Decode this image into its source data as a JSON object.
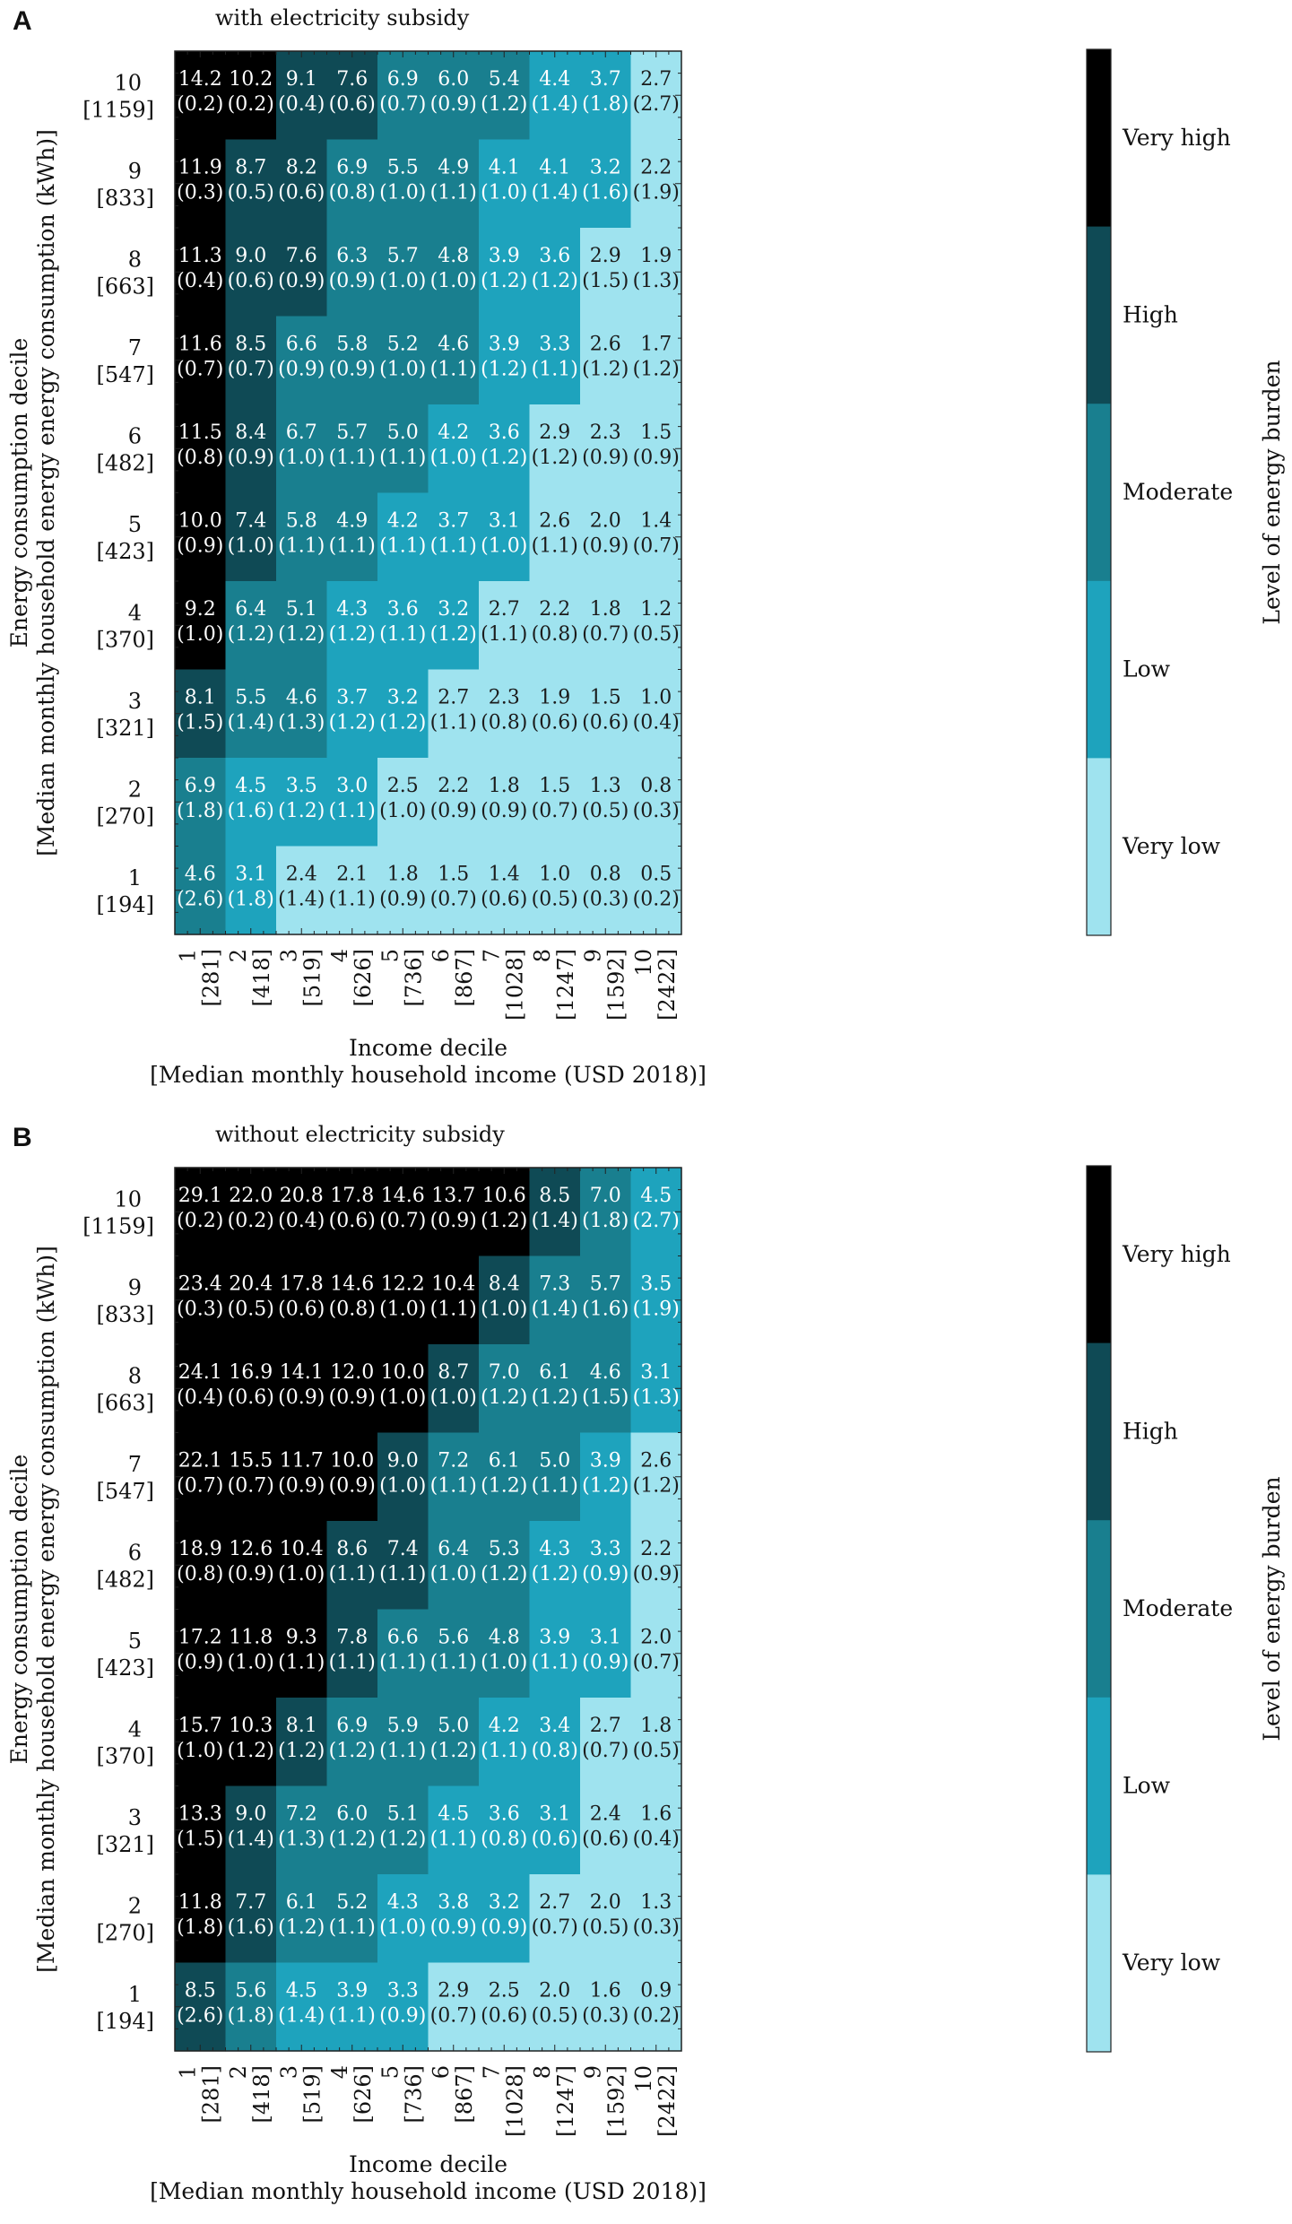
{
  "colors": {
    "very_low": "#9fe3ef",
    "low": "#1ea3bd",
    "moderate": "#197f8f",
    "high": "#0f4a55",
    "very_high": "#000000"
  },
  "chart_data": [
    {
      "type": "heatmap",
      "panel_label": "A",
      "title": "with electricity subsidy",
      "xlabel": "Income decile",
      "xlabel2": "[Median monthly household income (USD 2018)]",
      "ylabel": "Energy consumption decile",
      "ylabel2": "[Median monthly household energy energy consumption (kWh)]",
      "x_ticks": [
        {
          "decile": "1",
          "median": "[281]"
        },
        {
          "decile": "2",
          "median": "[418]"
        },
        {
          "decile": "3",
          "median": "[519]"
        },
        {
          "decile": "4",
          "median": "[626]"
        },
        {
          "decile": "5",
          "median": "[736]"
        },
        {
          "decile": "6",
          "median": "[867]"
        },
        {
          "decile": "7",
          "median": "[1028]"
        },
        {
          "decile": "8",
          "median": "[1247]"
        },
        {
          "decile": "9",
          "median": "[1592]"
        },
        {
          "decile": "10",
          "median": "[2422]"
        }
      ],
      "y_ticks": [
        {
          "decile": "10",
          "median": "[1159]"
        },
        {
          "decile": "9",
          "median": "[833]"
        },
        {
          "decile": "8",
          "median": "[663]"
        },
        {
          "decile": "7",
          "median": "[547]"
        },
        {
          "decile": "6",
          "median": "[482]"
        },
        {
          "decile": "5",
          "median": "[423]"
        },
        {
          "decile": "4",
          "median": "[370]"
        },
        {
          "decile": "3",
          "median": "[321]"
        },
        {
          "decile": "2",
          "median": "[270]"
        },
        {
          "decile": "1",
          "median": "[194]"
        }
      ],
      "values": [
        [
          "14.2",
          "10.2",
          "9.1",
          "7.6",
          "6.9",
          "6.0",
          "5.4",
          "4.4",
          "3.7",
          "2.7"
        ],
        [
          "11.9",
          "8.7",
          "8.2",
          "6.9",
          "5.5",
          "4.9",
          "4.1",
          "4.1",
          "3.2",
          "2.2"
        ],
        [
          "11.3",
          "9.0",
          "7.6",
          "6.3",
          "5.7",
          "4.8",
          "3.9",
          "3.6",
          "2.9",
          "1.9"
        ],
        [
          "11.6",
          "8.5",
          "6.6",
          "5.8",
          "5.2",
          "4.6",
          "3.9",
          "3.3",
          "2.6",
          "1.7"
        ],
        [
          "11.5",
          "8.4",
          "6.7",
          "5.7",
          "5.0",
          "4.2",
          "3.6",
          "2.9",
          "2.3",
          "1.5"
        ],
        [
          "10.0",
          "7.4",
          "5.8",
          "4.9",
          "4.2",
          "3.7",
          "3.1",
          "2.6",
          "2.0",
          "1.4"
        ],
        [
          "9.2",
          "6.4",
          "5.1",
          "4.3",
          "3.6",
          "3.2",
          "2.7",
          "2.2",
          "1.8",
          "1.2"
        ],
        [
          "8.1",
          "5.5",
          "4.6",
          "3.7",
          "3.2",
          "2.7",
          "2.3",
          "1.9",
          "1.5",
          "1.0"
        ],
        [
          "6.9",
          "4.5",
          "3.5",
          "3.0",
          "2.5",
          "2.2",
          "1.8",
          "1.5",
          "1.3",
          "0.8"
        ],
        [
          "4.6",
          "3.1",
          "2.4",
          "2.1",
          "1.8",
          "1.5",
          "1.4",
          "1.0",
          "0.8",
          "0.5"
        ]
      ],
      "errors": [
        [
          "(0.2)",
          "(0.2)",
          "(0.4)",
          "(0.6)",
          "(0.7)",
          "(0.9)",
          "(1.2)",
          "(1.4)",
          "(1.8)",
          "(2.7)"
        ],
        [
          "(0.3)",
          "(0.5)",
          "(0.6)",
          "(0.8)",
          "(1.0)",
          "(1.1)",
          "(1.0)",
          "(1.4)",
          "(1.6)",
          "(1.9)"
        ],
        [
          "(0.4)",
          "(0.6)",
          "(0.9)",
          "(0.9)",
          "(1.0)",
          "(1.0)",
          "(1.2)",
          "(1.2)",
          "(1.5)",
          "(1.3)"
        ],
        [
          "(0.7)",
          "(0.7)",
          "(0.9)",
          "(0.9)",
          "(1.0)",
          "(1.1)",
          "(1.2)",
          "(1.1)",
          "(1.2)",
          "(1.2)"
        ],
        [
          "(0.8)",
          "(0.9)",
          "(1.0)",
          "(1.1)",
          "(1.1)",
          "(1.0)",
          "(1.2)",
          "(1.2)",
          "(0.9)",
          "(0.9)"
        ],
        [
          "(0.9)",
          "(1.0)",
          "(1.1)",
          "(1.1)",
          "(1.1)",
          "(1.1)",
          "(1.0)",
          "(1.1)",
          "(0.9)",
          "(0.7)"
        ],
        [
          "(1.0)",
          "(1.2)",
          "(1.2)",
          "(1.2)",
          "(1.1)",
          "(1.2)",
          "(1.1)",
          "(0.8)",
          "(0.7)",
          "(0.5)"
        ],
        [
          "(1.5)",
          "(1.4)",
          "(1.3)",
          "(1.2)",
          "(1.2)",
          "(1.1)",
          "(0.8)",
          "(0.6)",
          "(0.6)",
          "(0.4)"
        ],
        [
          "(1.8)",
          "(1.6)",
          "(1.2)",
          "(1.1)",
          "(1.0)",
          "(0.9)",
          "(0.9)",
          "(0.7)",
          "(0.5)",
          "(0.3)"
        ],
        [
          "(2.6)",
          "(1.8)",
          "(1.4)",
          "(1.1)",
          "(0.9)",
          "(0.7)",
          "(0.6)",
          "(0.5)",
          "(0.3)",
          "(0.2)"
        ]
      ],
      "colorbar": {
        "label": "Level of energy burden",
        "categories": [
          "Very high",
          "High",
          "Moderate",
          "Low",
          "Very low"
        ]
      }
    },
    {
      "type": "heatmap",
      "panel_label": "B",
      "title": "without electricity subsidy",
      "xlabel": "Income decile",
      "xlabel2": "[Median monthly household income (USD 2018)]",
      "ylabel": "Energy consumption decile",
      "ylabel2": "[Median monthly household energy energy consumption (kWh)]",
      "x_ticks": [
        {
          "decile": "1",
          "median": "[281]"
        },
        {
          "decile": "2",
          "median": "[418]"
        },
        {
          "decile": "3",
          "median": "[519]"
        },
        {
          "decile": "4",
          "median": "[626]"
        },
        {
          "decile": "5",
          "median": "[736]"
        },
        {
          "decile": "6",
          "median": "[867]"
        },
        {
          "decile": "7",
          "median": "[1028]"
        },
        {
          "decile": "8",
          "median": "[1247]"
        },
        {
          "decile": "9",
          "median": "[1592]"
        },
        {
          "decile": "10",
          "median": "[2422]"
        }
      ],
      "y_ticks": [
        {
          "decile": "10",
          "median": "[1159]"
        },
        {
          "decile": "9",
          "median": "[833]"
        },
        {
          "decile": "8",
          "median": "[663]"
        },
        {
          "decile": "7",
          "median": "[547]"
        },
        {
          "decile": "6",
          "median": "[482]"
        },
        {
          "decile": "5",
          "median": "[423]"
        },
        {
          "decile": "4",
          "median": "[370]"
        },
        {
          "decile": "3",
          "median": "[321]"
        },
        {
          "decile": "2",
          "median": "[270]"
        },
        {
          "decile": "1",
          "median": "[194]"
        }
      ],
      "values": [
        [
          "29.1",
          "22.0",
          "20.8",
          "17.8",
          "14.6",
          "13.7",
          "10.6",
          "8.5",
          "7.0",
          "4.5"
        ],
        [
          "23.4",
          "20.4",
          "17.8",
          "14.6",
          "12.2",
          "10.4",
          "8.4",
          "7.3",
          "5.7",
          "3.5"
        ],
        [
          "24.1",
          "16.9",
          "14.1",
          "12.0",
          "10.0",
          "8.7",
          "7.0",
          "6.1",
          "4.6",
          "3.1"
        ],
        [
          "22.1",
          "15.5",
          "11.7",
          "10.0",
          "9.0",
          "7.2",
          "6.1",
          "5.0",
          "3.9",
          "2.6"
        ],
        [
          "18.9",
          "12.6",
          "10.4",
          "8.6",
          "7.4",
          "6.4",
          "5.3",
          "4.3",
          "3.3",
          "2.2"
        ],
        [
          "17.2",
          "11.8",
          "9.3",
          "7.8",
          "6.6",
          "5.6",
          "4.8",
          "3.9",
          "3.1",
          "2.0"
        ],
        [
          "15.7",
          "10.3",
          "8.1",
          "6.9",
          "5.9",
          "5.0",
          "4.2",
          "3.4",
          "2.7",
          "1.8"
        ],
        [
          "13.3",
          "9.0",
          "7.2",
          "6.0",
          "5.1",
          "4.5",
          "3.6",
          "3.1",
          "2.4",
          "1.6"
        ],
        [
          "11.8",
          "7.7",
          "6.1",
          "5.2",
          "4.3",
          "3.8",
          "3.2",
          "2.7",
          "2.0",
          "1.3"
        ],
        [
          "8.5",
          "5.6",
          "4.5",
          "3.9",
          "3.3",
          "2.9",
          "2.5",
          "2.0",
          "1.6",
          "0.9"
        ]
      ],
      "errors": [
        [
          "(0.2)",
          "(0.2)",
          "(0.4)",
          "(0.6)",
          "(0.7)",
          "(0.9)",
          "(1.2)",
          "(1.4)",
          "(1.8)",
          "(2.7)"
        ],
        [
          "(0.3)",
          "(0.5)",
          "(0.6)",
          "(0.8)",
          "(1.0)",
          "(1.1)",
          "(1.0)",
          "(1.4)",
          "(1.6)",
          "(1.9)"
        ],
        [
          "(0.4)",
          "(0.6)",
          "(0.9)",
          "(0.9)",
          "(1.0)",
          "(1.0)",
          "(1.2)",
          "(1.2)",
          "(1.5)",
          "(1.3)"
        ],
        [
          "(0.7)",
          "(0.7)",
          "(0.9)",
          "(0.9)",
          "(1.0)",
          "(1.1)",
          "(1.2)",
          "(1.1)",
          "(1.2)",
          "(1.2)"
        ],
        [
          "(0.8)",
          "(0.9)",
          "(1.0)",
          "(1.1)",
          "(1.1)",
          "(1.0)",
          "(1.2)",
          "(1.2)",
          "(0.9)",
          "(0.9)"
        ],
        [
          "(0.9)",
          "(1.0)",
          "(1.1)",
          "(1.1)",
          "(1.1)",
          "(1.1)",
          "(1.0)",
          "(1.1)",
          "(0.9)",
          "(0.7)"
        ],
        [
          "(1.0)",
          "(1.2)",
          "(1.2)",
          "(1.2)",
          "(1.1)",
          "(1.2)",
          "(1.1)",
          "(0.8)",
          "(0.7)",
          "(0.5)"
        ],
        [
          "(1.5)",
          "(1.4)",
          "(1.3)",
          "(1.2)",
          "(1.2)",
          "(1.1)",
          "(0.8)",
          "(0.6)",
          "(0.6)",
          "(0.4)"
        ],
        [
          "(1.8)",
          "(1.6)",
          "(1.2)",
          "(1.1)",
          "(1.0)",
          "(0.9)",
          "(0.9)",
          "(0.7)",
          "(0.5)",
          "(0.3)"
        ],
        [
          "(2.6)",
          "(1.8)",
          "(1.4)",
          "(1.1)",
          "(0.9)",
          "(0.7)",
          "(0.6)",
          "(0.5)",
          "(0.3)",
          "(0.2)"
        ]
      ],
      "colorbar": {
        "label": "Level of energy burden",
        "categories": [
          "Very high",
          "High",
          "Moderate",
          "Low",
          "Very low"
        ]
      }
    }
  ]
}
